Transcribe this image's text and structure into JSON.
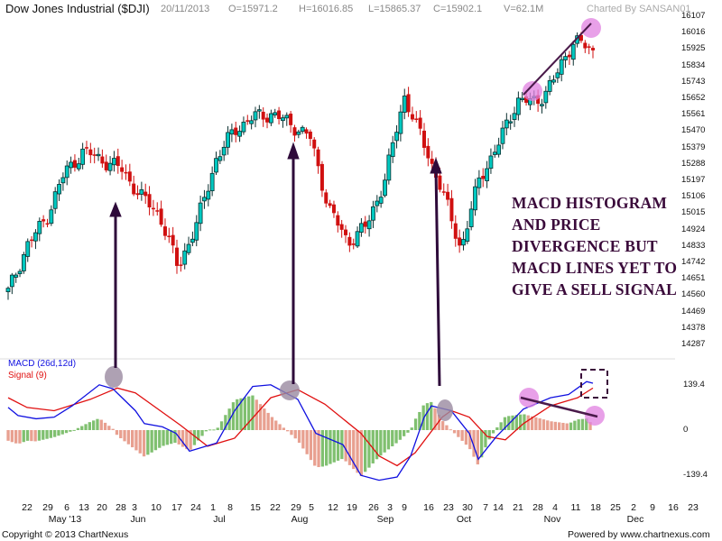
{
  "header": {
    "title": "Dow Jones Industrial ($DJI)",
    "date": "20/11/2013",
    "open": "O=15971.2",
    "high": "H=16016.85",
    "low": "L=15865.37",
    "close": "C=15902.1",
    "volume": "V=62.1M",
    "charted_by": "Charted By SANSAN01"
  },
  "price_axis": {
    "labels": [
      "16107",
      "16016",
      "15925",
      "15834",
      "15743",
      "15652",
      "15561",
      "15470",
      "15379",
      "15288",
      "15197",
      "15106",
      "15015",
      "14924",
      "14833",
      "14742",
      "14651",
      "14560",
      "14469",
      "14378",
      "14287"
    ]
  },
  "macd_panel": {
    "legend_macd": "MACD (26d,12d)",
    "legend_signal": "Signal (9)",
    "axis_labels": [
      "139.4",
      "0",
      "-139.4"
    ]
  },
  "x_axis": {
    "day_ticks": [
      "22",
      "29",
      "6",
      "13",
      "20",
      "28",
      "3",
      "10",
      "17",
      "24",
      "1",
      "8",
      "15",
      "22",
      "29",
      "5",
      "12",
      "19",
      "26",
      "3",
      "9",
      "16",
      "23",
      "30",
      "7",
      "14",
      "21",
      "28",
      "4",
      "11",
      "18",
      "25",
      "2",
      "9",
      "16",
      "23"
    ],
    "month_labels": [
      "May '13",
      "Jun",
      "Jul",
      "Aug",
      "Sep",
      "Oct",
      "Nov",
      "Dec"
    ]
  },
  "annotation": {
    "lines": [
      "MACD HISTOGRAM",
      "AND PRICE",
      "DIVERGENCE BUT",
      "MACD LINES YET TO",
      "GIVE A SELL SIGNAL"
    ]
  },
  "footer": {
    "copyright": "Copyright © 2013 ChartNexus",
    "powered": "Powered by www.chartnexus.com"
  },
  "colors": {
    "up_candle": "#00c8c0",
    "down_candle": "#d01010",
    "macd_line": "#1010e0",
    "signal_line": "#e01010",
    "hist_pos_rising": "#80c070",
    "hist_falling": "#e8a090",
    "annotation": "#3a0a3a",
    "highlight_pink": "#e080e0",
    "highlight_gray": "#9a8aa0"
  },
  "chart_data": {
    "type": "candlestick+macd",
    "title": "Dow Jones Industrial ($DJI)",
    "period": "Apr 2013 - Nov 2013 (daily)",
    "ylim_price": [
      14287,
      16107
    ],
    "ylim_macd": [
      -139.4,
      139.4
    ],
    "price_path_close": [
      [
        "Apr 22",
        14560
      ],
      [
        "Apr 29",
        14820
      ],
      [
        "May 6",
        14970
      ],
      [
        "May 13",
        15230
      ],
      [
        "May 20",
        15350
      ],
      [
        "May 28",
        15300
      ],
      [
        "Jun 3",
        15250
      ],
      [
        "Jun 10",
        15100
      ],
      [
        "Jun 17",
        15000
      ],
      [
        "Jun 24",
        14700
      ],
      [
        "Jul 1",
        14940
      ],
      [
        "Jul 8",
        15300
      ],
      [
        "Jul 15",
        15470
      ],
      [
        "Jul 22",
        15540
      ],
      [
        "Jul 29",
        15560
      ],
      [
        "Aug 5",
        15500
      ],
      [
        "Aug 12",
        15430
      ],
      [
        "Aug 19",
        15030
      ],
      [
        "Aug 26",
        14840
      ],
      [
        "Sep 3",
        14930
      ],
      [
        "Sep 9",
        15200
      ],
      [
        "Sep 16",
        15660
      ],
      [
        "Sep 23",
        15400
      ],
      [
        "Sep 30",
        15130
      ],
      [
        "Oct 7",
        14800
      ],
      [
        "Oct 14",
        15200
      ],
      [
        "Oct 21",
        15390
      ],
      [
        "Oct 28",
        15640
      ],
      [
        "Nov 4",
        15620
      ],
      [
        "Nov 11",
        15760
      ],
      [
        "Nov 18",
        15980
      ],
      [
        "Nov 20",
        15902
      ]
    ],
    "annotations": [
      "Rising trendline on price highs (Oct 28 -> Nov 18)",
      "Falling trendline on MACD histogram peaks (Oct 28 -> Nov 20)",
      "Arrows from MACD crossovers to price tops (May 22, Aug 2, Sep 26)",
      "Dashed box: MACD lines above signal, no sell crossover yet"
    ]
  }
}
